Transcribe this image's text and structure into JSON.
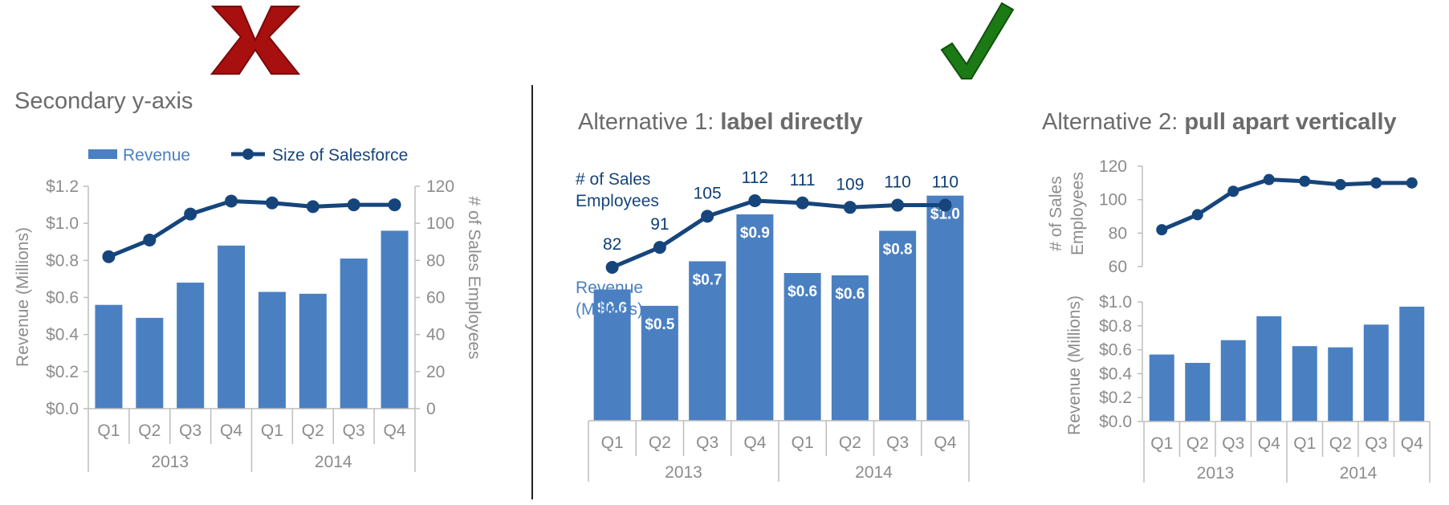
{
  "colors": {
    "bar": "#4a80c2",
    "line": "#16457c",
    "axis": "#bdbdbd",
    "text": "#8c8c8c",
    "bad": "#a80f0f",
    "good": "#1c7a15",
    "divider": "#222222"
  },
  "marks": {
    "bad": "x-mark-icon",
    "good": "check-mark-icon"
  },
  "panels": {
    "p1": {
      "title": "Secondary y-axis"
    },
    "p2": {
      "title_plain": "Alternative 1: ",
      "title_bold": "label directly"
    },
    "p3": {
      "title_plain": "Alternative 2: ",
      "title_bold": "pull apart vertically"
    }
  },
  "chart_data": [
    {
      "type": "bar",
      "title": "Secondary y-axis",
      "categories": [
        "Q1",
        "Q2",
        "Q3",
        "Q4",
        "Q1",
        "Q2",
        "Q3",
        "Q4"
      ],
      "groups": [
        "2013",
        "2014"
      ],
      "series": [
        {
          "name": "Revenue",
          "type": "bar",
          "axis": "left",
          "values": [
            0.56,
            0.49,
            0.68,
            0.88,
            0.63,
            0.62,
            0.81,
            0.96
          ]
        },
        {
          "name": "Size of Salesforce",
          "type": "line",
          "axis": "right",
          "values": [
            82,
            91,
            105,
            112,
            111,
            109,
            110,
            110
          ]
        }
      ],
      "ylabel": "Revenue (Millions)",
      "y2label": "# of Sales Employees",
      "yticks": [
        "$0.0",
        "$0.2",
        "$0.4",
        "$0.6",
        "$0.8",
        "$1.0",
        "$1.2"
      ],
      "y2ticks": [
        "0",
        "20",
        "40",
        "60",
        "80",
        "100",
        "120"
      ],
      "ylim": [
        0,
        1.2
      ],
      "y2lim": [
        0,
        120
      ],
      "legend": "top"
    },
    {
      "type": "bar",
      "title": "Alternative 1: label directly",
      "categories": [
        "Q1",
        "Q2",
        "Q3",
        "Q4",
        "Q1",
        "Q2",
        "Q3",
        "Q4"
      ],
      "groups": [
        "2013",
        "2014"
      ],
      "series": [
        {
          "name": "Revenue (Millions)",
          "type": "bar",
          "values": [
            0.56,
            0.49,
            0.68,
            0.88,
            0.63,
            0.62,
            0.81,
            0.96
          ],
          "labels": [
            "$0.6",
            "$0.5",
            "$0.7",
            "$0.9",
            "$0.6",
            "$0.6",
            "$0.8",
            "$1.0"
          ]
        },
        {
          "name": "# of Sales Employees",
          "type": "line",
          "values": [
            82,
            91,
            105,
            112,
            111,
            109,
            110,
            110
          ],
          "labels": [
            "82",
            "91",
            "105",
            "112",
            "111",
            "109",
            "110",
            "110"
          ]
        }
      ]
    },
    {
      "type": "bar",
      "title": "Alternative 2: pull apart vertically",
      "categories": [
        "Q1",
        "Q2",
        "Q3",
        "Q4",
        "Q1",
        "Q2",
        "Q3",
        "Q4"
      ],
      "groups": [
        "2013",
        "2014"
      ],
      "series": [
        {
          "name": "Revenue (Millions)",
          "type": "bar",
          "values": [
            0.56,
            0.49,
            0.68,
            0.88,
            0.63,
            0.62,
            0.81,
            0.96
          ]
        },
        {
          "name": "# of Sales Employees",
          "type": "line",
          "values": [
            82,
            91,
            105,
            112,
            111,
            109,
            110,
            110
          ]
        }
      ],
      "ylabel_top": "# of Sales Employees",
      "yticks_top": [
        "60",
        "80",
        "100",
        "120"
      ],
      "ylim_top": [
        60,
        120
      ],
      "ylabel_bottom": "Revenue (Millions)",
      "yticks_bottom": [
        "$0.0",
        "$0.2",
        "$0.4",
        "$0.6",
        "$0.8",
        "$1.0"
      ],
      "ylim_bottom": [
        0,
        1.0
      ]
    }
  ]
}
